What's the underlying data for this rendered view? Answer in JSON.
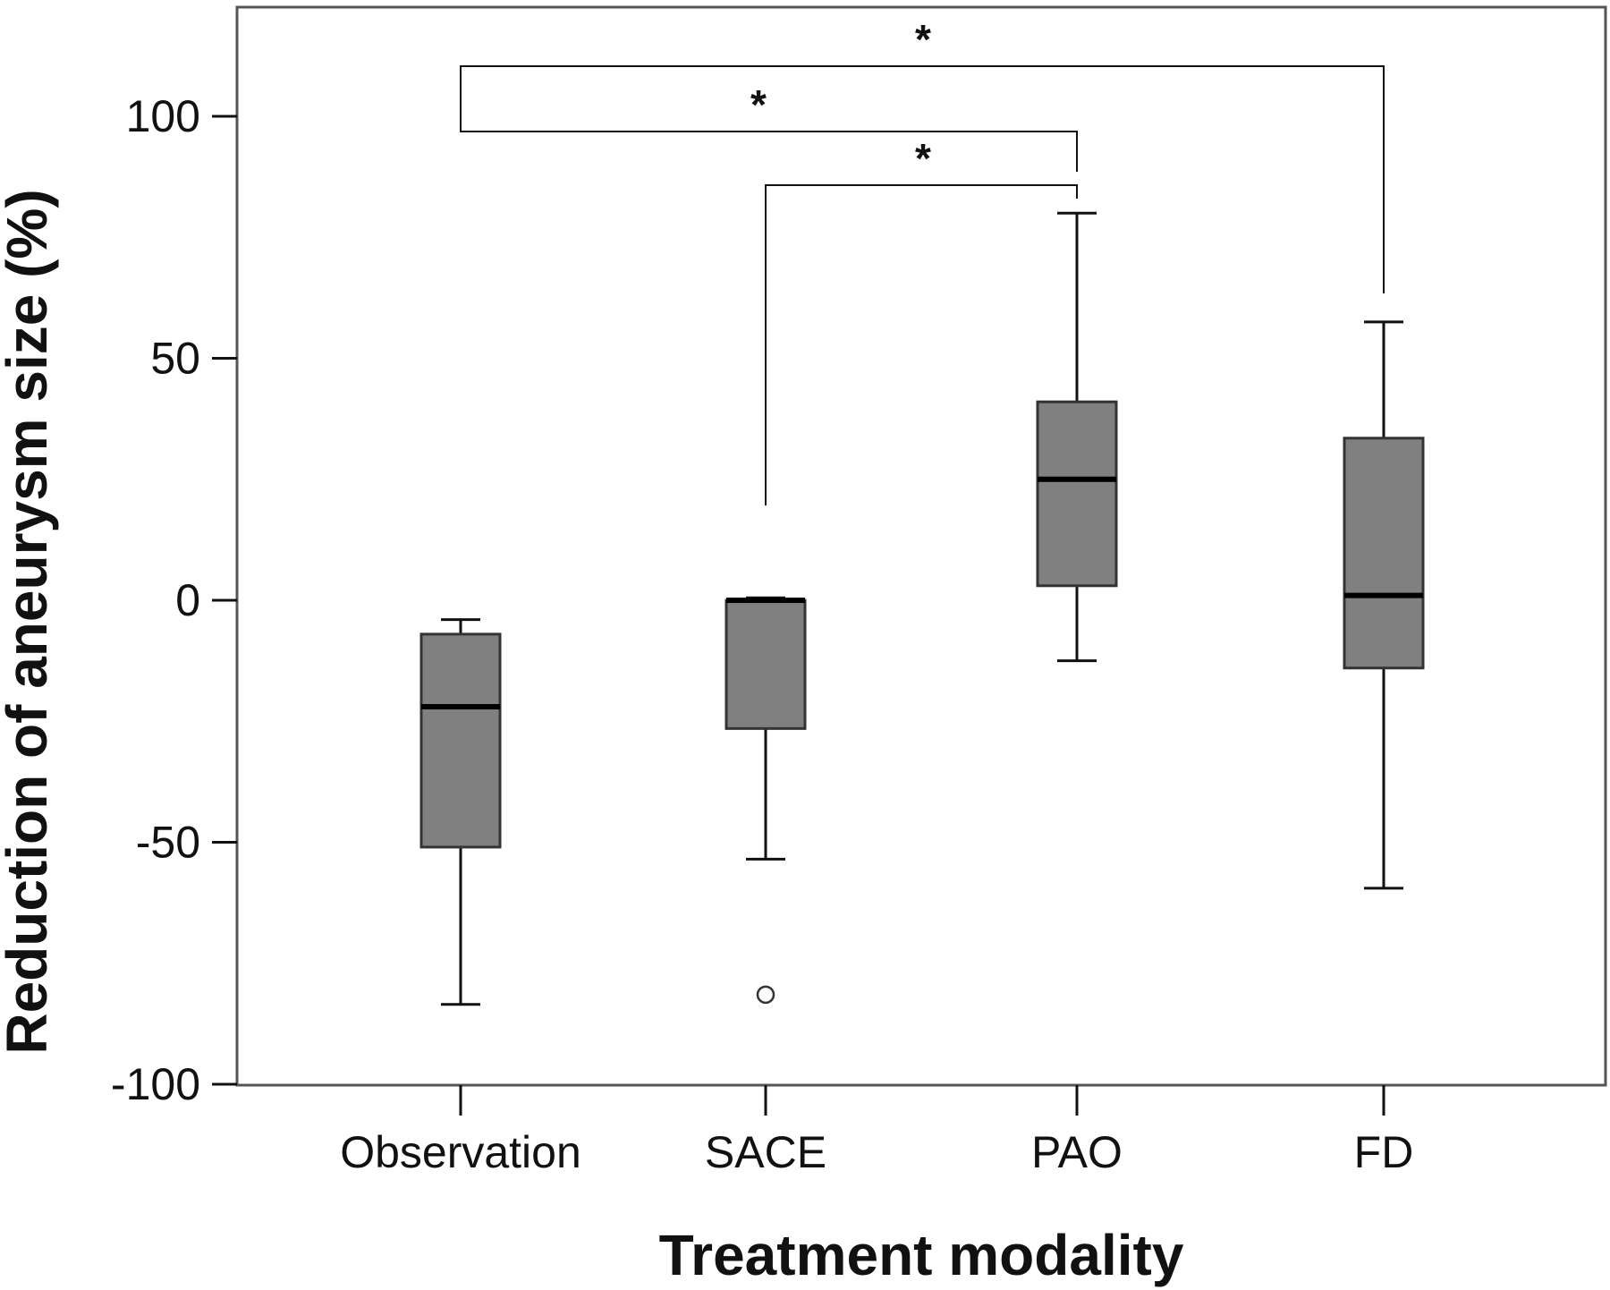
{
  "chart_data": {
    "type": "boxplot",
    "title": "",
    "xlabel": "Treatment modality",
    "ylabel": "Reduction of aneurysm size (%)",
    "ylim": [
      -100,
      122
    ],
    "yticks": [
      100,
      50,
      0,
      -50,
      -100
    ],
    "ytick_labels": [
      "100",
      "50",
      "0",
      "-50",
      "-100"
    ],
    "grid": false,
    "colors": {
      "box_fill": "#808080",
      "line": "#111111",
      "frame": "#555555"
    },
    "categories": [
      "Observation",
      "SACE",
      "PAO",
      "FD"
    ],
    "boxes": [
      {
        "category": "Observation",
        "whisker_low": -83.5,
        "q1": -51,
        "median": -22,
        "q3": -7,
        "whisker_high": -4,
        "outliers": []
      },
      {
        "category": "SACE",
        "whisker_low": -53.5,
        "q1": -26.5,
        "median": 0,
        "q3": 0,
        "whisker_high": 0.5,
        "outliers": [
          -81.5
        ]
      },
      {
        "category": "PAO",
        "whisker_low": -12.5,
        "q1": 3,
        "median": 25,
        "q3": 41,
        "whisker_high": 80,
        "outliers": []
      },
      {
        "category": "FD",
        "whisker_low": -59.5,
        "q1": -14,
        "median": 1,
        "q3": 33.5,
        "whisker_high": 57.5,
        "outliers": []
      }
    ],
    "significance": [
      {
        "from": "Observation",
        "to": "FD",
        "label": "*"
      },
      {
        "from": "Observation",
        "to": "PAO",
        "label": "*"
      },
      {
        "from": "SACE",
        "to": "PAO",
        "label": "*"
      }
    ]
  }
}
